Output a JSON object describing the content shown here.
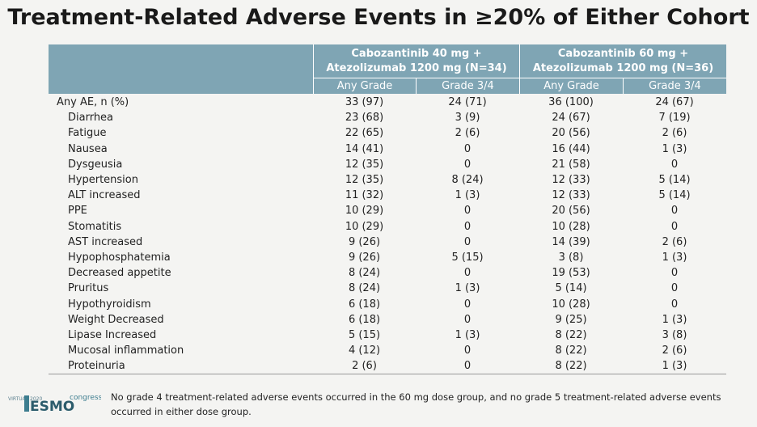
{
  "header": {
    "title": "Treatment-Related Adverse Events in ≥20% of Either Cohort"
  },
  "table": {
    "groups": [
      "Cabozantinib 40 mg + Atezolizumab 1200 mg (N=34)",
      "Cabozantinib 60 mg + Atezolizumab 1200 mg (N=36)"
    ],
    "subheaders": [
      "Any Grade",
      "Grade 3/4",
      "Any Grade",
      "Grade 3/4"
    ],
    "rows": [
      [
        "Any AE, n (%)",
        "33 (97)",
        "24 (71)",
        "36 (100)",
        "24 (67)"
      ],
      [
        "Diarrhea",
        "23 (68)",
        "3 (9)",
        "24 (67)",
        "7 (19)"
      ],
      [
        "Fatigue",
        "22 (65)",
        "2 (6)",
        "20 (56)",
        "2 (6)"
      ],
      [
        "Nausea",
        "14 (41)",
        "0",
        "16 (44)",
        "1 (3)"
      ],
      [
        "Dysgeusia",
        "12 (35)",
        "0",
        "21 (58)",
        "0"
      ],
      [
        "Hypertension",
        "12 (35)",
        "8 (24)",
        "12 (33)",
        "5 (14)"
      ],
      [
        "ALT increased",
        "11 (32)",
        "1 (3)",
        "12 (33)",
        "5 (14)"
      ],
      [
        "PPE",
        "10 (29)",
        "0",
        "20 (56)",
        "0"
      ],
      [
        "Stomatitis",
        "10 (29)",
        "0",
        "10 (28)",
        "0"
      ],
      [
        "AST increased",
        "9 (26)",
        "0",
        "14 (39)",
        "2 (6)"
      ],
      [
        "Hypophosphatemia",
        "9 (26)",
        "5 (15)",
        "3 (8)",
        "1 (3)"
      ],
      [
        "Decreased appetite",
        "8 (24)",
        "0",
        "19 (53)",
        "0"
      ],
      [
        "Pruritus",
        "8 (24)",
        "1 (3)",
        "5 (14)",
        "0"
      ],
      [
        "Hypothyroidism",
        "6 (18)",
        "0",
        "10 (28)",
        "0"
      ],
      [
        "Weight Decreased",
        "6 (18)",
        "0",
        "9 (25)",
        "1 (3)"
      ],
      [
        "Lipase Increased",
        "5 (15)",
        "1 (3)",
        "8 (22)",
        "3 (8)"
      ],
      [
        "Mucosal inflammation",
        "4 (12)",
        "0",
        "8 (22)",
        "2 (6)"
      ],
      [
        "Proteinuria",
        "2 (6)",
        "0",
        "8 (22)",
        "1 (3)"
      ]
    ]
  },
  "footnote": "No grade 4 treatment-related adverse events occurred in the 60 mg dose group, and no grade 5 treatment-related adverse events occurred in either dose group.",
  "logo": {
    "virtual": "VIRTUAL 2020",
    "esmo": "ESMO",
    "congress": "congress"
  }
}
